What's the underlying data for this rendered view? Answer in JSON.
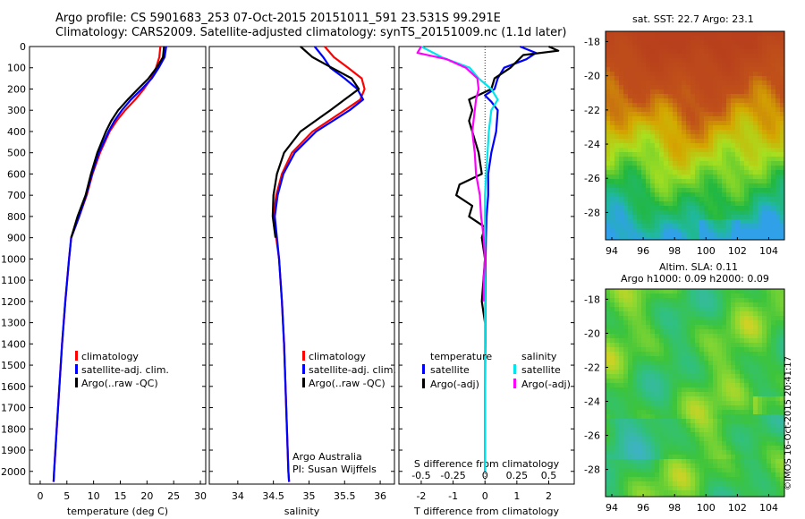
{
  "header": {
    "title_line1": "Argo profile: CS 5901683_253 07-Oct-2015 20151011_591 23.531S 99.291E",
    "title_line2": "Climatology: CARS2009. Satellite-adjusted climatology: synTS_20151009.nc (1.1d later)"
  },
  "maps": {
    "sst_title": "sat. SST: 22.7 Argo: 23.1",
    "sla_title_line1": "Altim. SLA: 0.11",
    "sla_title_line2": "Argo h1000: 0.09 h2000: 0.09",
    "lat_ticks": [
      "-18",
      "-20",
      "-22",
      "-24",
      "-26",
      "-28"
    ],
    "lon_ticks": [
      "94",
      "96",
      "98",
      "100",
      "102",
      "104"
    ],
    "colors": {
      "sst_warm": "#c0501a",
      "sst_mid": "#d4a800",
      "sst_cool": "#22b840",
      "sla_base": "#3cc43c"
    }
  },
  "stamp": "©IMOS 16-Oct-2015 20:41:17",
  "chart_data": [
    {
      "type": "line",
      "xlabel": "temperature (deg C)",
      "ylabel": "",
      "xlim": [
        -2,
        31
      ],
      "ylim": [
        2060,
        0
      ],
      "xticks": [
        "0",
        "5",
        "10",
        "15",
        "20",
        "25",
        "30"
      ],
      "yticks": [
        "0",
        "100",
        "200",
        "300",
        "400",
        "500",
        "600",
        "700",
        "800",
        "900",
        "1000",
        "1100",
        "1200",
        "1300",
        "1400",
        "1500",
        "1600",
        "1700",
        "1800",
        "1900",
        "2000"
      ],
      "legend": [
        "climatology",
        "satellite-adj. clim.",
        "Argo(..raw -QC)"
      ],
      "legend_position": "lower-center",
      "series": [
        {
          "name": "climatology",
          "color": "#ff0000",
          "depth": [
            0,
            50,
            100,
            150,
            200,
            250,
            300,
            350,
            400,
            500,
            600,
            700,
            800,
            900,
            1000,
            1200,
            1400,
            1600,
            1800,
            2000,
            2050
          ],
          "values": [
            22.5,
            22.3,
            21.7,
            20.8,
            19.4,
            17.8,
            15.9,
            14.3,
            13.0,
            11.2,
            9.8,
            8.7,
            7.3,
            5.8,
            5.4,
            4.7,
            4.1,
            3.6,
            3.1,
            2.6,
            2.5
          ]
        },
        {
          "name": "satellite-adj. clim.",
          "color": "#0000ff",
          "depth": [
            0,
            50,
            100,
            150,
            200,
            250,
            300,
            350,
            400,
            500,
            600,
            700,
            800,
            900,
            1000,
            1200,
            1400,
            1600,
            1800,
            2000,
            2050
          ],
          "values": [
            23.6,
            23.3,
            22.2,
            20.9,
            19.0,
            17.0,
            15.3,
            13.9,
            12.8,
            11.0,
            9.7,
            8.6,
            7.3,
            5.8,
            5.4,
            4.7,
            4.1,
            3.6,
            3.1,
            2.6,
            2.5
          ]
        },
        {
          "name": "Argo(..raw -QC)",
          "color": "#000000",
          "depth": [
            0,
            50,
            100,
            150,
            200,
            250,
            300,
            350,
            400,
            500,
            600,
            700,
            800,
            900
          ],
          "values": [
            23.2,
            23.0,
            21.8,
            20.3,
            18.3,
            16.4,
            14.6,
            13.3,
            12.3,
            10.7,
            9.5,
            8.5,
            7.0,
            5.8
          ]
        }
      ]
    },
    {
      "type": "line",
      "xlabel": "salinity",
      "ylabel": "",
      "xlim": [
        33.6,
        36.2
      ],
      "ylim": [
        2060,
        0
      ],
      "xticks": [
        "34",
        "34.5",
        "35",
        "35.5",
        "36"
      ],
      "legend": [
        "climatology",
        "satellite-adj. clim.",
        "Argo(..raw -QC)"
      ],
      "legend_position": "lower-center",
      "annotation": [
        "Argo Australia",
        "PI: Susan Wijffels"
      ],
      "series": [
        {
          "name": "climatology",
          "color": "#ff0000",
          "depth": [
            0,
            50,
            100,
            150,
            200,
            250,
            300,
            400,
            500,
            600,
            700,
            800,
            900,
            1000,
            1200,
            1400,
            1600,
            1800,
            2000,
            2050
          ],
          "values": [
            35.22,
            35.35,
            35.55,
            35.74,
            35.78,
            35.72,
            35.5,
            35.05,
            34.76,
            34.62,
            34.54,
            34.5,
            34.54,
            34.58,
            34.62,
            34.65,
            34.67,
            34.69,
            34.71,
            34.72
          ]
        },
        {
          "name": "satellite-adj. clim.",
          "color": "#0000ff",
          "depth": [
            0,
            50,
            100,
            150,
            200,
            250,
            300,
            400,
            500,
            600,
            700,
            800,
            900,
            1000,
            1200,
            1400,
            1600,
            1800,
            2000,
            2050
          ],
          "values": [
            35.08,
            35.2,
            35.3,
            35.5,
            35.68,
            35.76,
            35.57,
            35.1,
            34.8,
            34.64,
            34.56,
            34.52,
            34.55,
            34.58,
            34.62,
            34.65,
            34.67,
            34.69,
            34.71,
            34.72
          ]
        },
        {
          "name": "Argo(..raw -QC)",
          "color": "#000000",
          "depth": [
            0,
            50,
            100,
            150,
            200,
            250,
            300,
            400,
            500,
            600,
            700,
            800,
            900
          ],
          "values": [
            34.88,
            35.05,
            35.32,
            35.6,
            35.7,
            35.5,
            35.3,
            34.88,
            34.65,
            34.55,
            34.5,
            34.49,
            34.53
          ]
        }
      ]
    },
    {
      "type": "line",
      "xlabel": "T difference from climatology",
      "xlabel_top": "S difference from climatology",
      "ylabel": "",
      "xlim": [
        -2.7,
        2.8
      ],
      "ylim": [
        2060,
        0
      ],
      "xticks": [
        "-2",
        "-1",
        "0",
        "1",
        "2"
      ],
      "top_ticks": [
        "-0.5",
        "-0.25",
        "0",
        "0.25",
        "0.5"
      ],
      "legend_left_title": "temperature",
      "legend_right_title": "salinity",
      "legend": [
        "satellite",
        "Argo(-adj)",
        "satellite",
        "Argo(-adj)"
      ],
      "series": [
        {
          "name": "satellite",
          "group": "temperature",
          "color": "#0000ff",
          "depth": [
            0,
            30,
            60,
            100,
            150,
            200,
            230,
            260,
            300,
            400,
            500,
            600,
            700,
            800,
            900,
            1000,
            1200,
            1400,
            1600,
            1800,
            2000
          ],
          "values": [
            1.1,
            1.6,
            1.3,
            0.6,
            0.4,
            0.3,
            0.0,
            0.2,
            0.4,
            0.35,
            0.2,
            0.1,
            0.1,
            0.05,
            0.03,
            0.02,
            0.01,
            0.01,
            0.0,
            0.0,
            0.0
          ]
        },
        {
          "name": "Argo(-adj)",
          "group": "temperature",
          "color": "#000000",
          "depth": [
            0,
            20,
            40,
            100,
            150,
            200,
            250,
            300,
            350,
            400,
            500,
            600,
            650,
            700,
            750,
            800,
            850,
            900,
            1000,
            1200,
            1300
          ],
          "values": [
            2.0,
            2.3,
            1.2,
            0.8,
            0.3,
            0.2,
            -0.5,
            -0.4,
            -0.5,
            -0.4,
            -0.2,
            -0.1,
            -0.8,
            -0.9,
            -0.4,
            -0.5,
            0.0,
            -0.1,
            0.0,
            -0.1,
            0.0
          ]
        },
        {
          "name": "satellite",
          "group": "salinity",
          "color": "#00e5ee",
          "depth": [
            0,
            50,
            100,
            150,
            200,
            250,
            300,
            400,
            500,
            600,
            700,
            800,
            900,
            1000,
            1200,
            1400,
            1600,
            1800,
            2000
          ],
          "values": [
            -0.5,
            -0.34,
            -0.12,
            -0.05,
            0.05,
            0.1,
            0.05,
            0.03,
            0.02,
            0.01,
            0.0,
            0.0,
            0.0,
            0.0,
            0.0,
            0.0,
            0.0,
            0.0,
            0.0
          ]
        },
        {
          "name": "Argo(-adj)",
          "group": "salinity",
          "color": "#ff00ff",
          "depth": [
            0,
            30,
            60,
            100,
            150,
            200,
            250,
            300,
            350,
            400,
            500,
            600,
            700,
            800,
            900,
            1000,
            1100,
            1200
          ],
          "values": [
            -0.5,
            -0.53,
            -0.3,
            -0.15,
            -0.06,
            -0.05,
            -0.07,
            -0.08,
            -0.09,
            -0.1,
            -0.08,
            -0.07,
            -0.04,
            -0.03,
            -0.01,
            0.0,
            -0.01,
            -0.01
          ]
        }
      ]
    }
  ]
}
